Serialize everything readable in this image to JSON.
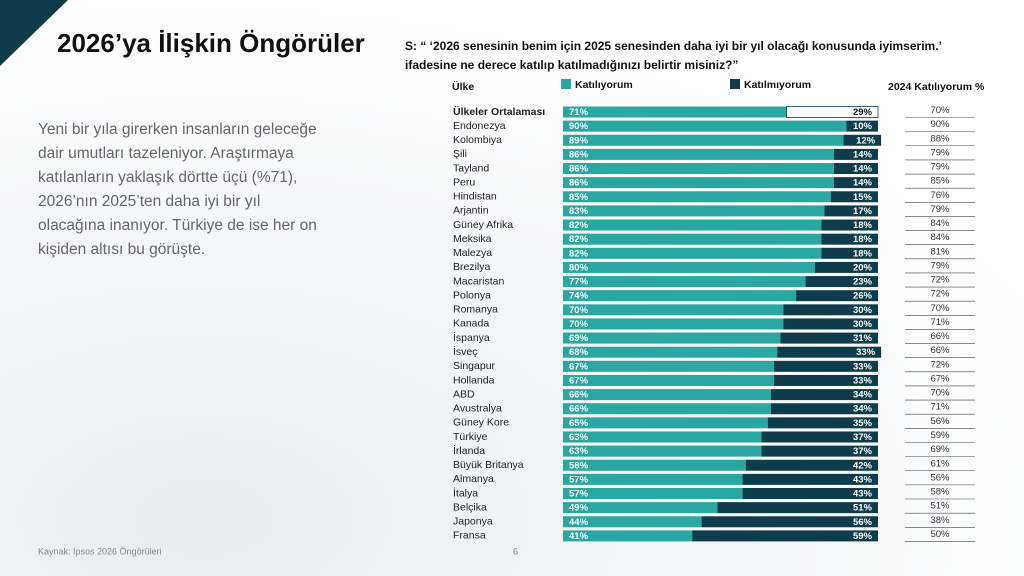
{
  "slide": {
    "title": "2026’ya İlişkin Öngörüler",
    "body": [
      "Yeni bir yıla girerken insanların geleceğe",
      "dair umutları tazeleniyor. Araştırmaya",
      "katılanların yaklaşık dörtte üçü (%71),",
      "2026’nın 2025’ten daha iyi bir yıl",
      "olacağına inanıyor. Türkiye de ise her on",
      "kişiden altısı bu görüşte."
    ],
    "source": "Kaynak: Ipsos 2026 Öngörüleri",
    "page": "6"
  },
  "chart_data": {
    "type": "bar",
    "orientation": "horizontal",
    "stacked": true,
    "title": [
      "S: “ ‘2026 senesinin benim için 2025 senesinden daha iyi bir yıl olacağı konusunda iyimserim.’",
      "ifadesine ne derece katılıp katılmadığınızı belirtir misiniz?”"
    ],
    "category_header": "Ülke",
    "categories": [
      "Ülkeler Ortalaması",
      "Endonezya",
      "Kolombiya",
      "Şili",
      "Tayland",
      "Peru",
      "Hindistan",
      "Arjantin",
      "Güney Afrika",
      "Meksika",
      "Malezya",
      "Brezilya",
      "Macaristan",
      "Polonya",
      "Romanya",
      "Kanada",
      "İspanya",
      "İsveç",
      "Singapur",
      "Hollanda",
      "ABD",
      "Avustralya",
      "Güney Kore",
      "Türkiye",
      "İrlanda",
      "Büyük Britanya",
      "Almanya",
      "İtalya",
      "Belçika",
      "Japonya",
      "Fransa"
    ],
    "series": [
      {
        "name": "Katılıyorum",
        "color": "#2aa7a1",
        "values": [
          71,
          90,
          89,
          86,
          86,
          86,
          85,
          83,
          82,
          82,
          82,
          80,
          77,
          74,
          70,
          70,
          69,
          68,
          67,
          67,
          66,
          66,
          65,
          63,
          63,
          58,
          57,
          57,
          49,
          44,
          41
        ],
        "value_labels": [
          "71%",
          "90%",
          "89%",
          "86%",
          "86%",
          "86%",
          "85%",
          "83%",
          "82%",
          "82%",
          "82%",
          "80%",
          "77%",
          "74%",
          "70%",
          "70%",
          "69%",
          "68%",
          "67%",
          "67%",
          "66%",
          "66%",
          "65%",
          "63%",
          "63%",
          "58%",
          "57%",
          "57%",
          "49%",
          "44%",
          "41%"
        ]
      },
      {
        "name": "Katılmıyorum",
        "color": "#0f3c4a",
        "values": [
          29,
          10,
          12,
          14,
          14,
          14,
          15,
          17,
          18,
          18,
          18,
          20,
          23,
          26,
          30,
          30,
          31,
          33,
          33,
          33,
          34,
          34,
          35,
          37,
          37,
          42,
          43,
          43,
          51,
          56,
          59
        ],
        "value_labels": [
          "29%",
          "10%",
          "12%",
          "14%",
          "14%",
          "14%",
          "15%",
          "17%",
          "18%",
          "18%",
          "18%",
          "20%",
          "23%",
          "26%",
          "30%",
          "30%",
          "31%",
          "33%",
          "33%",
          "33%",
          "34%",
          "34%",
          "35%",
          "37%",
          "37%",
          "42%",
          "43%",
          "43%",
          "51%",
          "56%",
          "59%"
        ]
      }
    ],
    "previous": {
      "name": "2024 Katılıyorum %",
      "values": [
        70,
        90,
        88,
        79,
        79,
        85,
        76,
        79,
        84,
        84,
        81,
        79,
        72,
        72,
        70,
        71,
        66,
        66,
        72,
        67,
        70,
        71,
        56,
        59,
        69,
        61,
        56,
        58,
        51,
        38,
        50
      ],
      "value_labels": [
        "70%",
        "90%",
        "88%",
        "79%",
        "79%",
        "85%",
        "76%",
        "79%",
        "84%",
        "84%",
        "81%",
        "79%",
        "72%",
        "72%",
        "70%",
        "71%",
        "66%",
        "66%",
        "72%",
        "67%",
        "70%",
        "71%",
        "56%",
        "59%",
        "69%",
        "61%",
        "56%",
        "58%",
        "51%",
        "38%",
        "50%"
      ]
    },
    "xlim": [
      0,
      100
    ]
  }
}
